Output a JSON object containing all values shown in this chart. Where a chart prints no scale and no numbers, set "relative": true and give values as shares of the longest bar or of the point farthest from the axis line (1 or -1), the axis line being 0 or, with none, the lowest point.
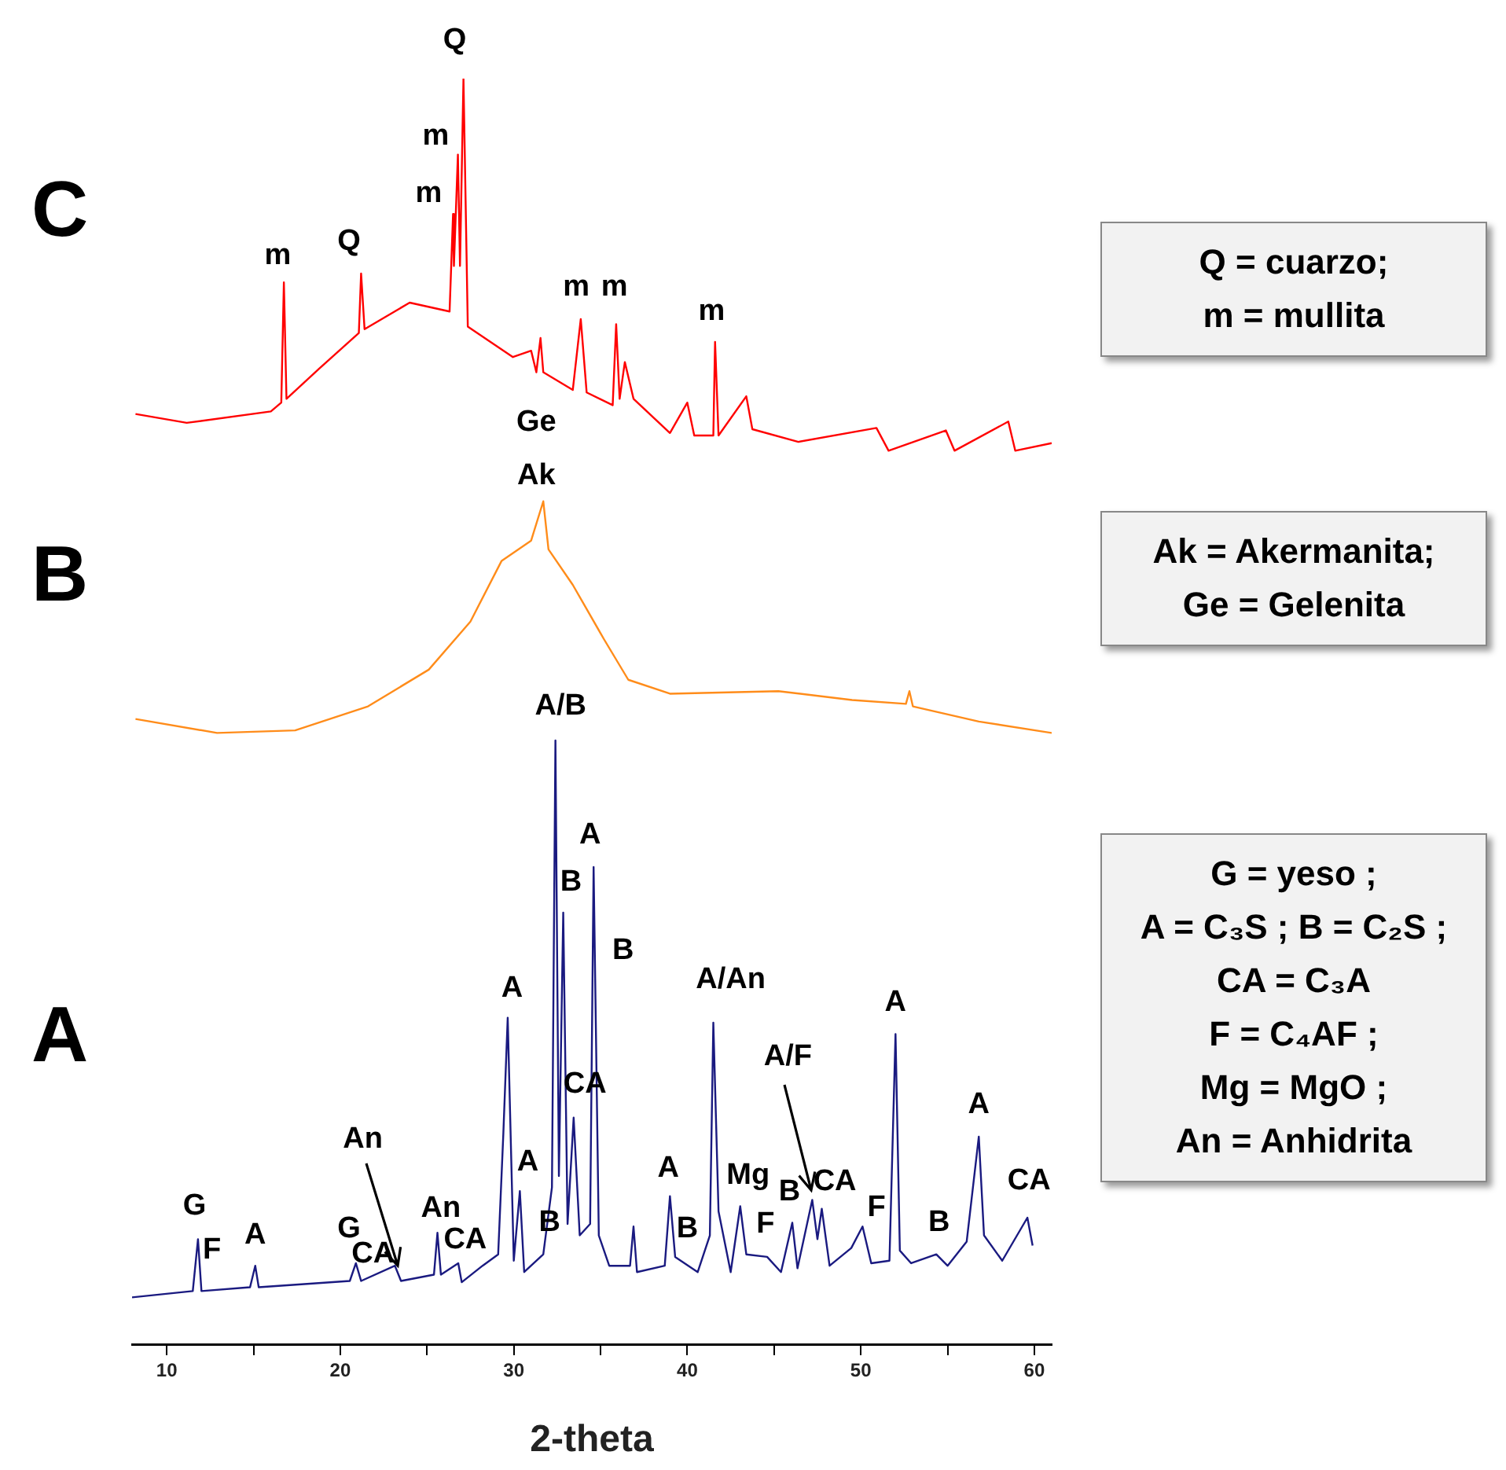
{
  "chart_data": {
    "type": "line",
    "relative": true,
    "xlabel": "2-theta",
    "xlim": [
      8,
      61
    ],
    "xticks": [
      10,
      {
        "value": 15,
        "label": null
      },
      20,
      {
        "value": 25,
        "label": null
      },
      30,
      {
        "value": 35,
        "label": null
      },
      40,
      {
        "value": 45,
        "label": null
      },
      50,
      {
        "value": 55,
        "label": null
      },
      60
    ],
    "series": [
      {
        "name": "A",
        "color": "#1a1a80",
        "x": [
          8.0,
          11.5,
          11.8,
          12.0,
          14.8,
          15.1,
          15.3,
          20.55,
          20.9,
          21.2,
          23.15,
          23.5,
          25.4,
          25.6,
          25.8,
          26.8,
          27.0,
          28.2,
          29.1,
          29.4,
          29.65,
          30.0,
          30.35,
          30.6,
          31.7,
          32.2,
          32.4,
          32.6,
          32.85,
          33.1,
          33.45,
          33.8,
          34.4,
          34.6,
          34.9,
          35.5,
          36.7,
          36.9,
          37.1,
          38.7,
          39.0,
          39.3,
          40.6,
          41.3,
          41.5,
          41.8,
          42.5,
          43.05,
          43.4,
          44.6,
          45.4,
          46.05,
          46.35,
          47.2,
          47.5,
          47.75,
          48.2,
          49.45,
          50.1,
          50.6,
          51.65,
          52.0,
          52.25,
          52.9,
          54.35,
          55.0,
          56.1,
          56.8,
          57.1,
          58.15,
          59.6,
          59.9
        ],
        "values": [
          0.037,
          0.042,
          0.083,
          0.042,
          0.045,
          0.062,
          0.045,
          0.05,
          0.064,
          0.05,
          0.062,
          0.05,
          0.055,
          0.088,
          0.055,
          0.064,
          0.049,
          0.062,
          0.071,
          0.167,
          0.258,
          0.066,
          0.121,
          0.057,
          0.071,
          0.124,
          0.477,
          0.133,
          0.341,
          0.095,
          0.179,
          0.086,
          0.095,
          0.377,
          0.086,
          0.062,
          0.062,
          0.093,
          0.057,
          0.062,
          0.117,
          0.069,
          0.057,
          0.086,
          0.254,
          0.105,
          0.057,
          0.109,
          0.071,
          0.069,
          0.057,
          0.096,
          0.06,
          0.114,
          0.083,
          0.107,
          0.062,
          0.076,
          0.093,
          0.064,
          0.066,
          0.245,
          0.074,
          0.064,
          0.071,
          0.062,
          0.081,
          0.164,
          0.086,
          0.066,
          0.1,
          0.078
        ]
      },
      {
        "name": "B",
        "color": "#ff8c1a",
        "x": [
          8.2,
          12.9,
          17.4,
          21.6,
          25.1,
          27.5,
          29.3,
          31.0,
          31.7,
          32.0,
          33.4,
          35.2,
          36.6,
          39.0,
          45.25,
          49.5,
          52.6,
          52.8,
          53.0,
          56.8,
          61.0
        ],
        "values": [
          0.494,
          0.483,
          0.485,
          0.504,
          0.533,
          0.571,
          0.619,
          0.635,
          0.666,
          0.628,
          0.6,
          0.557,
          0.525,
          0.514,
          0.516,
          0.509,
          0.506,
          0.516,
          0.504,
          0.492,
          0.483
        ]
      },
      {
        "name": "C",
        "color": "#ff0000",
        "x": [
          8.2,
          11.15,
          16.0,
          16.6,
          16.75,
          16.9,
          18.8,
          21.07,
          21.2,
          21.4,
          24.0,
          26.3,
          26.5,
          26.55,
          26.78,
          26.9,
          27.1,
          27.35,
          29.95,
          31.0,
          31.3,
          31.54,
          31.7,
          33.4,
          33.86,
          34.2,
          35.7,
          35.9,
          36.1,
          36.4,
          36.9,
          39.0,
          40.0,
          40.4,
          41.5,
          41.6,
          41.8,
          43.4,
          43.75,
          46.4,
          50.9,
          51.6,
          54.9,
          55.4,
          58.5,
          58.9,
          61.0
        ],
        "values": [
          0.735,
          0.728,
          0.737,
          0.744,
          0.839,
          0.747,
          0.771,
          0.799,
          0.846,
          0.802,
          0.823,
          0.816,
          0.893,
          0.852,
          0.94,
          0.852,
          1.0,
          0.804,
          0.78,
          0.785,
          0.768,
          0.795,
          0.768,
          0.754,
          0.81,
          0.752,
          0.742,
          0.806,
          0.747,
          0.776,
          0.747,
          0.72,
          0.744,
          0.718,
          0.718,
          0.792,
          0.718,
          0.749,
          0.723,
          0.713,
          0.724,
          0.706,
          0.722,
          0.706,
          0.729,
          0.706,
          0.712
        ]
      }
    ],
    "annotations": [
      {
        "text": "m",
        "x": 16.75,
        "y": 0.839
      },
      {
        "text": "Q",
        "x": 21.2,
        "y": 0.846
      },
      {
        "text": "m",
        "x": 26.5,
        "y": 0.893
      },
      {
        "text": "m",
        "x": 26.78,
        "y": 0.94
      },
      {
        "text": "Q",
        "x": 27.1,
        "y": 1.0
      },
      {
        "text": "m",
        "x": 33.86,
        "y": 0.81
      },
      {
        "text": "m",
        "x": 35.9,
        "y": 0.806
      },
      {
        "text": "m",
        "x": 41.6,
        "y": 0.792
      },
      {
        "text": "Ge",
        "x": 31.7,
        "y": 0.666
      },
      {
        "text": "Ak",
        "x": 31.7,
        "y": 0.666
      },
      {
        "text": "A/B",
        "x": 32.4,
        "y": 0.477
      },
      {
        "text": "A",
        "x": 34.6,
        "y": 0.377
      },
      {
        "text": "B",
        "x": 32.85,
        "y": 0.341
      },
      {
        "text": "B",
        "x": 34.6,
        "y": 0.377
      },
      {
        "text": "A",
        "x": 29.65,
        "y": 0.258
      },
      {
        "text": "A/An",
        "x": 41.5,
        "y": 0.254
      },
      {
        "text": "CA",
        "x": 33.45,
        "y": 0.179
      },
      {
        "text": "A",
        "x": 52.0,
        "y": 0.245
      },
      {
        "text": "A/F",
        "x": 47.2,
        "y": 0.114
      },
      {
        "text": "A",
        "x": 56.8,
        "y": 0.164
      },
      {
        "text": "An",
        "x": 23.15,
        "y": 0.062
      },
      {
        "text": "A",
        "x": 30.35,
        "y": 0.121
      },
      {
        "text": "A",
        "x": 39.0,
        "y": 0.117
      },
      {
        "text": "Mg",
        "x": 43.05,
        "y": 0.109
      },
      {
        "text": "CA",
        "x": 47.75,
        "y": 0.107
      },
      {
        "text": "CA",
        "x": 59.6,
        "y": 0.1
      },
      {
        "text": "B",
        "x": 46.05,
        "y": 0.096
      },
      {
        "text": "An",
        "x": 25.6,
        "y": 0.088
      },
      {
        "text": "G",
        "x": 11.8,
        "y": 0.083
      },
      {
        "text": "F",
        "x": 50.1,
        "y": 0.093
      },
      {
        "text": "B",
        "x": 31.7,
        "y": 0.071
      },
      {
        "text": "A",
        "x": 15.1,
        "y": 0.062
      },
      {
        "text": "G",
        "x": 20.9,
        "y": 0.064
      },
      {
        "text": "F",
        "x": 44.6,
        "y": 0.069
      },
      {
        "text": "B",
        "x": 54.35,
        "y": 0.071
      },
      {
        "text": "CA",
        "x": 26.8,
        "y": 0.064
      },
      {
        "text": "B",
        "x": 39.3,
        "y": 0.069
      },
      {
        "text": "F",
        "x": 11.8,
        "y": 0.083
      },
      {
        "text": "CA",
        "x": 21.2,
        "y": 0.05
      },
      "Q = cuarzo;\nm = mullita",
      "Ak = Akermanita;\nGe = Gelenita",
      "G = yeso ;\nA = C₃S ; B = C₂S ;\nCA = C₃A\nF = C₄AF ;\nMg = MgO ;\nAn = Anhidrita"
    ]
  }
}
